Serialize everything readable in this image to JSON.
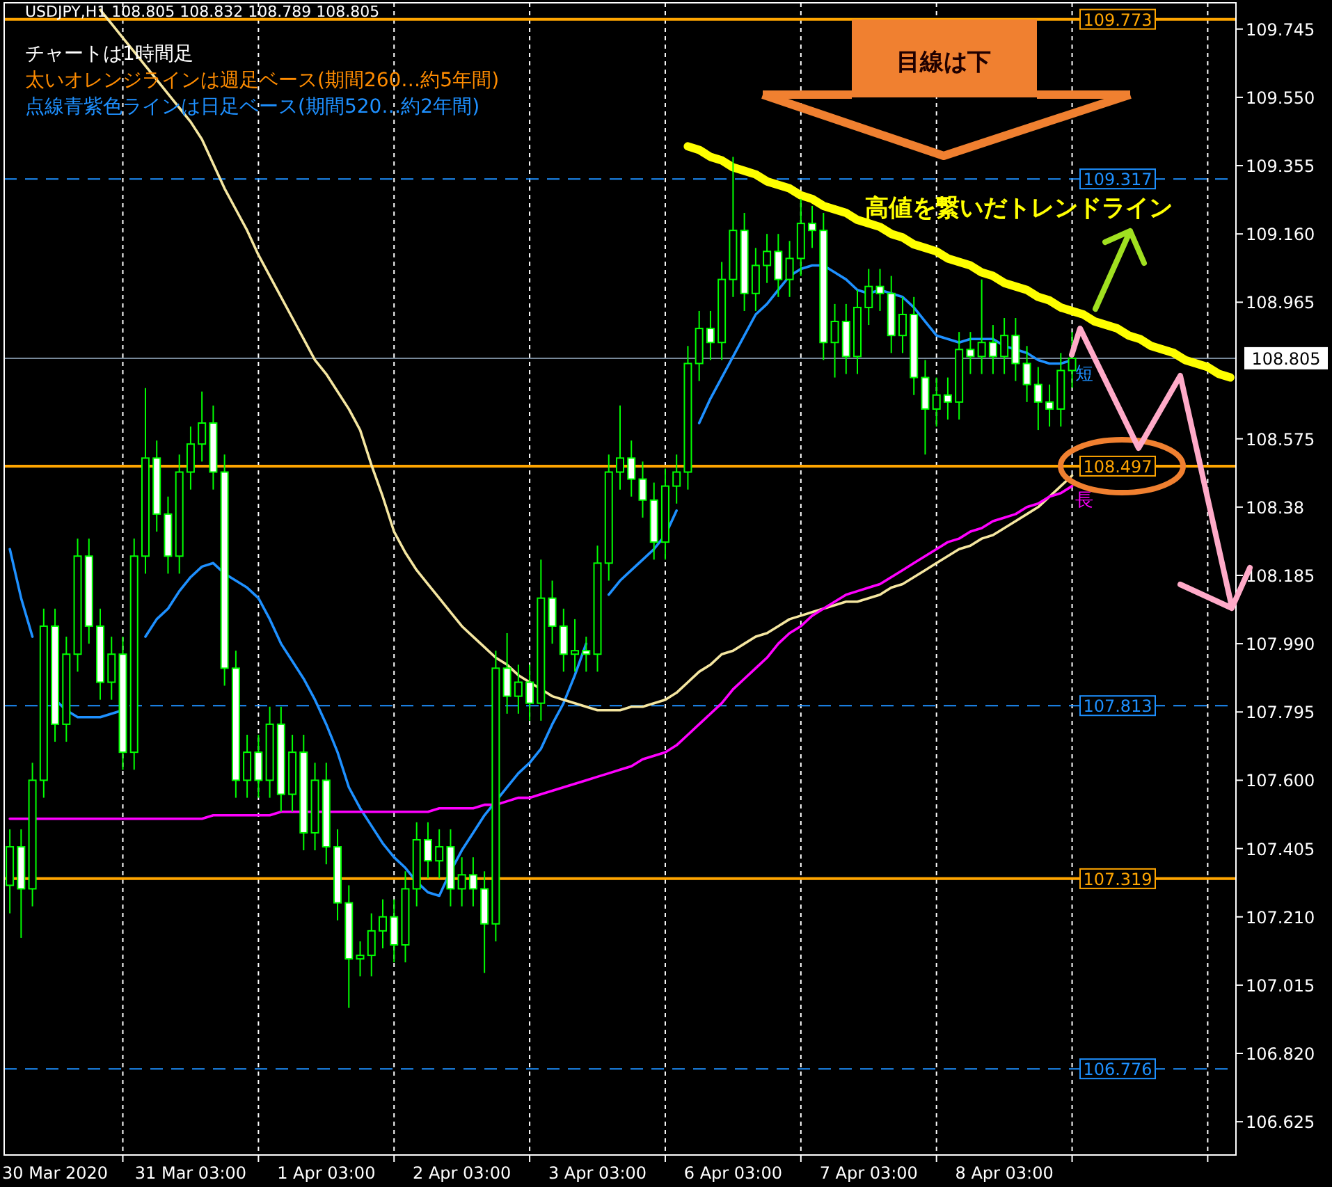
{
  "chart_data": {
    "type": "candlestick",
    "title": "USDJPY,H1  108.805 108.832 108.789 108.805",
    "annotations": [
      "チャートは1時間足",
      "太いオレンジラインは週足ベース(期間260…約5年間)",
      "点線青紫色ラインは日足ベース(期間520…約2年間)",
      "目線は下",
      "高値を繋いだトレンドライン"
    ],
    "color": "#00ff00",
    "categories": [
      null,
      null,
      null,
      null,
      "30 Mar 2020",
      null,
      null,
      null,
      null,
      null,
      null,
      null,
      null,
      null,
      null,
      null,
      "31 Mar 03:00",
      null,
      null,
      null,
      null,
      null,
      null,
      null,
      null,
      null,
      null,
      null,
      "1 Apr 03:00",
      null,
      null,
      null,
      null,
      null,
      null,
      null,
      null,
      null,
      null,
      null,
      "2 Apr 03:00",
      null,
      null,
      null,
      null,
      null,
      null,
      null,
      null,
      null,
      null,
      null,
      "3 Apr 03:00",
      null,
      null,
      null,
      null,
      null,
      null,
      null,
      null,
      null,
      null,
      null,
      "6 Apr 03:00",
      null,
      null,
      null,
      null,
      null,
      null,
      null,
      null,
      null,
      null,
      null,
      "7 Apr 03:00",
      null,
      null,
      null,
      null,
      null,
      null,
      null,
      null,
      null,
      null,
      null,
      "8 Apr 03:00",
      null,
      null,
      null,
      null,
      null,
      null,
      null,
      null,
      null,
      null,
      null,
      null,
      null,
      null,
      null,
      null,
      null,
      null,
      null,
      null
    ],
    "ohlc": [
      [
        107.3,
        107.46,
        107.22,
        107.41
      ],
      [
        107.41,
        107.46,
        107.15,
        107.29
      ],
      [
        107.29,
        107.65,
        107.24,
        107.6
      ],
      [
        107.6,
        108.09,
        107.55,
        108.04
      ],
      [
        108.04,
        108.09,
        107.71,
        107.76
      ],
      [
        107.76,
        108.01,
        107.71,
        107.96
      ],
      [
        107.96,
        108.29,
        107.91,
        108.24
      ],
      [
        108.24,
        108.29,
        107.99,
        108.04
      ],
      [
        108.04,
        108.09,
        107.83,
        107.88
      ],
      [
        107.88,
        108.01,
        107.83,
        107.96
      ],
      [
        107.96,
        108.01,
        107.63,
        107.68
      ],
      [
        107.68,
        108.29,
        107.63,
        108.24
      ],
      [
        108.24,
        108.72,
        108.19,
        108.52
      ],
      [
        108.52,
        108.57,
        108.31,
        108.36
      ],
      [
        108.36,
        108.41,
        108.19,
        108.24
      ],
      [
        108.24,
        108.53,
        108.19,
        108.48
      ],
      [
        108.48,
        108.61,
        108.43,
        108.56
      ],
      [
        108.56,
        108.71,
        108.51,
        108.62
      ],
      [
        108.62,
        108.67,
        108.43,
        108.48
      ],
      [
        108.48,
        108.53,
        107.87,
        107.92
      ],
      [
        107.92,
        107.97,
        107.55,
        107.6
      ],
      [
        107.6,
        107.73,
        107.55,
        107.68
      ],
      [
        107.68,
        107.73,
        107.55,
        107.6
      ],
      [
        107.6,
        107.81,
        107.55,
        107.76
      ],
      [
        107.76,
        107.81,
        107.51,
        107.56
      ],
      [
        107.56,
        107.73,
        107.51,
        107.68
      ],
      [
        107.68,
        107.73,
        107.4,
        107.45
      ],
      [
        107.45,
        107.65,
        107.4,
        107.6
      ],
      [
        107.6,
        107.65,
        107.36,
        107.41
      ],
      [
        107.41,
        107.46,
        107.2,
        107.25
      ],
      [
        107.25,
        107.3,
        106.95,
        107.09
      ],
      [
        107.09,
        107.14,
        107.04,
        107.1
      ],
      [
        107.1,
        107.22,
        107.04,
        107.17
      ],
      [
        107.17,
        107.26,
        107.12,
        107.21
      ],
      [
        107.21,
        107.26,
        107.08,
        107.13
      ],
      [
        107.13,
        107.34,
        107.08,
        107.29
      ],
      [
        107.29,
        107.48,
        107.24,
        107.43
      ],
      [
        107.43,
        107.48,
        107.32,
        107.37
      ],
      [
        107.37,
        107.46,
        107.32,
        107.41
      ],
      [
        107.41,
        107.46,
        107.24,
        107.29
      ],
      [
        107.29,
        107.38,
        107.24,
        107.33
      ],
      [
        107.33,
        107.38,
        107.24,
        107.29
      ],
      [
        107.29,
        107.34,
        107.05,
        107.19
      ],
      [
        107.19,
        107.97,
        107.14,
        107.92
      ],
      [
        107.92,
        108.02,
        107.79,
        107.84
      ],
      [
        107.84,
        107.93,
        107.79,
        107.88
      ],
      [
        107.88,
        107.93,
        107.77,
        107.82
      ],
      [
        107.82,
        108.23,
        107.77,
        108.12
      ],
      [
        108.12,
        108.17,
        107.99,
        108.04
      ],
      [
        108.04,
        108.09,
        107.91,
        107.96
      ],
      [
        107.96,
        108.06,
        107.91,
        107.97
      ],
      [
        107.97,
        108.01,
        107.91,
        107.96
      ],
      [
        107.96,
        108.27,
        107.91,
        108.22
      ],
      [
        108.22,
        108.53,
        108.17,
        108.48
      ],
      [
        108.48,
        108.67,
        108.43,
        108.52
      ],
      [
        108.52,
        108.57,
        108.41,
        108.46
      ],
      [
        108.46,
        108.51,
        108.35,
        108.4
      ],
      [
        108.4,
        108.45,
        108.23,
        108.28
      ],
      [
        108.28,
        108.49,
        108.23,
        108.44
      ],
      [
        108.44,
        108.53,
        108.39,
        108.48
      ],
      [
        108.48,
        108.84,
        108.43,
        108.79
      ],
      [
        108.79,
        108.94,
        108.74,
        108.89
      ],
      [
        108.89,
        108.94,
        108.8,
        108.85
      ],
      [
        108.85,
        109.08,
        108.8,
        109.03
      ],
      [
        109.03,
        109.38,
        108.98,
        109.17
      ],
      [
        109.17,
        109.22,
        108.94,
        108.99
      ],
      [
        108.99,
        109.12,
        108.94,
        109.07
      ],
      [
        109.07,
        109.16,
        109.02,
        109.11
      ],
      [
        109.11,
        109.16,
        108.98,
        109.03
      ],
      [
        109.03,
        109.14,
        108.98,
        109.09
      ],
      [
        109.09,
        109.26,
        109.04,
        109.19
      ],
      [
        109.19,
        109.24,
        109.12,
        109.17
      ],
      [
        109.17,
        109.22,
        108.8,
        108.85
      ],
      [
        108.85,
        108.96,
        108.75,
        108.91
      ],
      [
        108.91,
        108.96,
        108.76,
        108.81
      ],
      [
        108.81,
        109.0,
        108.76,
        108.95
      ],
      [
        108.95,
        109.06,
        108.9,
        109.01
      ],
      [
        109.01,
        109.06,
        108.94,
        108.99
      ],
      [
        108.99,
        109.04,
        108.82,
        108.87
      ],
      [
        108.87,
        108.98,
        108.82,
        108.93
      ],
      [
        108.93,
        108.98,
        108.7,
        108.75
      ],
      [
        108.75,
        108.8,
        108.53,
        108.66
      ],
      [
        108.66,
        108.75,
        108.61,
        108.7
      ],
      [
        108.7,
        108.75,
        108.63,
        108.68
      ],
      [
        108.68,
        108.88,
        108.63,
        108.83
      ],
      [
        108.83,
        108.88,
        108.76,
        108.81
      ],
      [
        108.81,
        109.03,
        108.76,
        108.85
      ],
      [
        108.85,
        108.9,
        108.76,
        108.81
      ],
      [
        108.81,
        108.92,
        108.76,
        108.87
      ],
      [
        108.87,
        108.92,
        108.74,
        108.79
      ],
      [
        108.79,
        108.84,
        108.68,
        108.73
      ],
      [
        108.73,
        108.78,
        108.6,
        108.68
      ],
      [
        108.68,
        108.73,
        108.61,
        108.66
      ],
      [
        108.66,
        108.82,
        108.61,
        108.77
      ],
      [
        108.77,
        108.88,
        108.72,
        108.805
      ],
      null,
      null,
      null,
      null,
      null,
      null,
      null,
      null,
      null,
      null,
      null,
      null,
      null,
      null
    ],
    "series": [
      {
        "name": "短",
        "type": "line",
        "color": "#1e90ff",
        "values": [
          108.26,
          108.12,
          108.01,
          null,
          107.83,
          107.8,
          107.78,
          107.78,
          107.78,
          107.79,
          107.8,
          null,
          108.01,
          108.06,
          108.09,
          108.14,
          108.18,
          108.21,
          108.22,
          108.19,
          108.17,
          108.15,
          108.12,
          108.06,
          107.99,
          107.94,
          107.89,
          107.83,
          107.76,
          107.68,
          107.58,
          107.52,
          107.47,
          107.42,
          107.38,
          107.35,
          107.31,
          107.28,
          107.27,
          107.34,
          107.4,
          107.45,
          107.5,
          107.54,
          107.58,
          107.62,
          107.65,
          107.69,
          107.76,
          107.82,
          107.9,
          107.99,
          null,
          108.13,
          108.17,
          108.2,
          108.23,
          108.26,
          108.3,
          108.37,
          null,
          108.62,
          108.69,
          108.75,
          108.81,
          108.87,
          108.93,
          108.96,
          109.0,
          109.04,
          109.06,
          109.07,
          109.07,
          109.05,
          109.03,
          109.0,
          108.99,
          109.0,
          108.99,
          108.98,
          108.95,
          108.91,
          108.87,
          108.86,
          108.85,
          108.86,
          108.86,
          108.86,
          108.84,
          108.83,
          108.82,
          108.8,
          108.79,
          108.79,
          108.8,
          null,
          null,
          null,
          null,
          null,
          null,
          null,
          null,
          null,
          null,
          null,
          null,
          null,
          null
        ]
      },
      {
        "type": "line",
        "color": "#f5e6a0",
        "values": [
          null,
          null,
          null,
          null,
          null,
          null,
          null,
          null,
          109.8,
          109.76,
          109.72,
          109.68,
          109.64,
          109.6,
          109.56,
          109.52,
          109.48,
          109.43,
          109.36,
          109.29,
          109.23,
          109.17,
          109.1,
          109.04,
          108.98,
          108.92,
          108.86,
          108.8,
          108.76,
          108.71,
          108.66,
          108.6,
          108.5,
          108.41,
          108.31,
          108.25,
          108.2,
          108.16,
          108.12,
          108.08,
          108.04,
          108.01,
          107.98,
          107.95,
          107.93,
          107.9,
          107.88,
          107.86,
          107.84,
          107.83,
          107.82,
          107.81,
          107.8,
          107.8,
          107.8,
          107.81,
          107.81,
          107.82,
          107.83,
          107.85,
          107.88,
          107.91,
          107.93,
          107.96,
          107.97,
          107.99,
          108.01,
          108.02,
          108.04,
          108.06,
          108.07,
          108.08,
          108.09,
          108.1,
          108.11,
          108.11,
          108.12,
          108.13,
          108.15,
          108.16,
          108.18,
          108.2,
          108.22,
          108.24,
          108.26,
          108.27,
          108.29,
          108.3,
          108.32,
          108.34,
          108.36,
          108.38,
          108.41,
          108.44,
          108.47,
          null,
          null,
          null,
          null,
          null,
          null,
          null,
          null,
          null,
          null,
          null,
          null,
          null,
          null
        ]
      },
      {
        "name": "長",
        "type": "line",
        "color": "#ff00ff",
        "values": [
          107.49,
          107.49,
          107.49,
          107.49,
          107.49,
          107.49,
          107.49,
          107.49,
          107.49,
          107.49,
          107.49,
          107.49,
          107.49,
          107.49,
          107.49,
          107.49,
          107.49,
          107.49,
          107.5,
          107.5,
          107.5,
          107.5,
          107.5,
          107.5,
          107.51,
          107.51,
          107.51,
          107.51,
          107.51,
          107.51,
          107.51,
          107.51,
          107.51,
          107.51,
          107.51,
          107.51,
          107.51,
          107.51,
          107.52,
          107.52,
          107.52,
          107.52,
          107.53,
          107.53,
          107.54,
          107.55,
          107.55,
          107.56,
          107.57,
          107.58,
          107.59,
          107.6,
          107.61,
          107.62,
          107.63,
          107.64,
          107.66,
          107.67,
          107.68,
          107.7,
          107.73,
          107.76,
          107.79,
          107.82,
          107.86,
          107.89,
          107.92,
          107.95,
          107.99,
          108.02,
          108.04,
          108.07,
          108.09,
          108.11,
          108.13,
          108.14,
          108.15,
          108.16,
          108.18,
          108.2,
          108.22,
          108.24,
          108.26,
          108.28,
          108.29,
          108.31,
          108.32,
          108.34,
          108.35,
          108.36,
          108.38,
          108.39,
          108.41,
          108.42,
          108.44,
          null,
          null,
          null,
          null,
          null,
          null,
          null,
          null,
          null,
          null,
          null,
          null,
          null,
          null
        ]
      },
      {
        "type": "line",
        "color": "#ffff00",
        "values": [
          null,
          null,
          null,
          null,
          null,
          null,
          null,
          null,
          null,
          null,
          null,
          null,
          null,
          null,
          null,
          null,
          null,
          null,
          null,
          null,
          null,
          null,
          null,
          null,
          null,
          null,
          null,
          null,
          null,
          null,
          null,
          null,
          null,
          null,
          null,
          null,
          null,
          null,
          null,
          null,
          null,
          null,
          null,
          null,
          null,
          null,
          null,
          null,
          null,
          null,
          null,
          null,
          null,
          null,
          null,
          null,
          null,
          null,
          null,
          null,
          109.41,
          109.4,
          109.38,
          109.37,
          109.35,
          109.34,
          109.33,
          109.31,
          109.3,
          109.29,
          109.27,
          109.26,
          109.24,
          109.23,
          109.22,
          109.2,
          109.19,
          109.18,
          109.16,
          109.15,
          109.13,
          109.12,
          109.11,
          109.09,
          109.08,
          109.07,
          109.05,
          109.04,
          109.02,
          109.01,
          109.0,
          108.98,
          108.97,
          108.95,
          108.94,
          108.93,
          108.91,
          108.9,
          108.89,
          108.87,
          108.86,
          108.84,
          108.83,
          108.82,
          108.8,
          108.79,
          108.78,
          108.76,
          108.75
        ]
      }
    ],
    "ref_lines": [
      {
        "axis": "y",
        "value": 109.773,
        "label": "109.773",
        "color": "#ffa500",
        "line_style": "solid"
      },
      {
        "axis": "y",
        "value": 109.317,
        "label": "109.317",
        "color": "#1e90ff",
        "line_style": "dashed"
      },
      {
        "axis": "y",
        "value": 108.805,
        "label": "108.805",
        "color": "#778899",
        "line_style": "solid"
      },
      {
        "axis": "y",
        "value": 108.497,
        "label": "108.497",
        "color": "#ffa500",
        "line_style": "solid"
      },
      {
        "axis": "y",
        "value": 107.813,
        "label": "107.813",
        "color": "#1e90ff",
        "line_style": "dashed"
      },
      {
        "axis": "y",
        "value": 107.319,
        "label": "107.319",
        "color": "#ffa500",
        "line_style": "solid"
      },
      {
        "axis": "y",
        "value": 106.776,
        "label": "106.776",
        "color": "#1e90ff",
        "line_style": "dashed"
      }
    ],
    "ylim": [
      106.53,
      109.82
    ],
    "yticks": [
      109.745,
      {
        "value": 109.55,
        "label": "109.550"
      },
      109.355,
      {
        "value": 109.16,
        "label": "109.160"
      },
      108.965,
      108.575,
      108.38,
      108.185,
      {
        "value": 107.99,
        "label": "107.990"
      },
      107.795,
      {
        "value": 107.6,
        "label": "107.600"
      },
      107.405,
      {
        "value": 107.21,
        "label": "107.210"
      },
      107.015,
      {
        "value": 106.82,
        "label": "106.820"
      },
      106.625
    ],
    "grid": "x"
  }
}
